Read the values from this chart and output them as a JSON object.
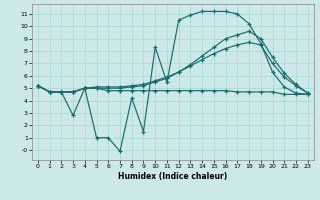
{
  "xlabel": "Humidex (Indice chaleur)",
  "xlim": [
    -0.5,
    23.5
  ],
  "ylim": [
    -0.8,
    11.8
  ],
  "xticks": [
    0,
    1,
    2,
    3,
    4,
    5,
    6,
    7,
    8,
    9,
    10,
    11,
    12,
    13,
    14,
    15,
    16,
    17,
    18,
    19,
    20,
    21,
    22,
    23
  ],
  "yticks": [
    0,
    1,
    2,
    3,
    4,
    5,
    6,
    7,
    8,
    9,
    10,
    11
  ],
  "ytick_labels": [
    "-0",
    "1",
    "2",
    "3",
    "4",
    "5",
    "6",
    "7",
    "8",
    "9",
    "10",
    "11"
  ],
  "background_color": "#cce8e8",
  "grid_color": "#a8d4d4",
  "line_color": "#1a6b6b",
  "line_noisy_x": [
    0,
    1,
    2,
    3,
    4,
    5,
    6,
    7,
    8,
    9,
    10,
    11,
    12,
    13,
    14,
    15,
    16,
    17,
    18,
    19,
    20,
    21,
    22,
    23
  ],
  "line_noisy_y": [
    5.2,
    4.7,
    4.7,
    2.8,
    5.0,
    1.0,
    1.0,
    -0.1,
    4.2,
    1.5,
    8.3,
    5.5,
    10.5,
    10.9,
    11.2,
    11.2,
    11.2,
    11.0,
    10.2,
    8.6,
    6.3,
    5.1,
    4.6,
    4.5
  ],
  "line_high_x": [
    0,
    1,
    2,
    3,
    4,
    5,
    6,
    7,
    8,
    9,
    10,
    11,
    12,
    13,
    14,
    15,
    16,
    17,
    18,
    19,
    20,
    21,
    22,
    23
  ],
  "line_high_y": [
    5.2,
    4.7,
    4.7,
    4.7,
    5.0,
    5.0,
    5.0,
    5.0,
    5.1,
    5.2,
    5.5,
    5.8,
    6.3,
    6.9,
    7.6,
    8.3,
    9.0,
    9.3,
    9.6,
    9.0,
    7.5,
    6.2,
    5.3,
    4.6
  ],
  "line_mid_x": [
    0,
    1,
    2,
    3,
    4,
    5,
    6,
    7,
    8,
    9,
    10,
    11,
    12,
    13,
    14,
    15,
    16,
    17,
    18,
    19,
    20,
    21,
    22,
    23
  ],
  "line_mid_y": [
    5.2,
    4.7,
    4.7,
    4.7,
    5.0,
    5.1,
    5.1,
    5.1,
    5.2,
    5.3,
    5.6,
    5.9,
    6.3,
    6.8,
    7.3,
    7.8,
    8.2,
    8.5,
    8.7,
    8.5,
    7.0,
    5.9,
    5.2,
    4.6
  ],
  "line_flat_x": [
    0,
    1,
    2,
    3,
    4,
    5,
    6,
    7,
    8,
    9,
    10,
    11,
    12,
    13,
    14,
    15,
    16,
    17,
    18,
    19,
    20,
    21,
    22,
    23
  ],
  "line_flat_y": [
    5.2,
    4.7,
    4.7,
    4.7,
    5.0,
    5.0,
    4.8,
    4.8,
    4.8,
    4.8,
    4.8,
    4.8,
    4.8,
    4.8,
    4.8,
    4.8,
    4.8,
    4.7,
    4.7,
    4.7,
    4.7,
    4.5,
    4.5,
    4.5
  ]
}
